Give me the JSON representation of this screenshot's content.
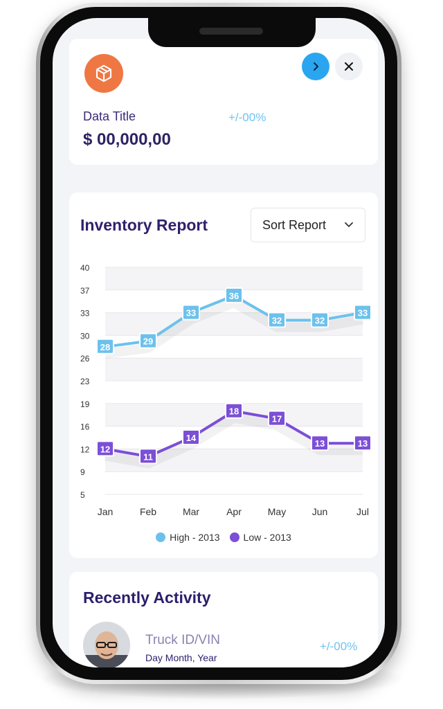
{
  "summary": {
    "title": "Data Title",
    "value": "$ 00,000,00",
    "change": "+/-00%",
    "icon": "package-icon",
    "accent": "#ef7743"
  },
  "report": {
    "title": "Inventory Report",
    "sort_label": "Sort Report"
  },
  "chart_data": {
    "type": "line",
    "categories": [
      "Jan",
      "Feb",
      "Mar",
      "Apr",
      "May",
      "Jun",
      "Jul"
    ],
    "y_ticks": [
      "40",
      "37",
      "33",
      "30",
      "26",
      "23",
      "19",
      "16",
      "12",
      "9",
      "5"
    ],
    "ylim": [
      5,
      40
    ],
    "grid": true,
    "legend_position": "bottom",
    "series": [
      {
        "name": "High - 2013",
        "values": [
          28,
          29,
          33,
          36,
          32,
          32,
          33
        ],
        "color": "#6cc1ec"
      },
      {
        "name": "Low - 2013",
        "values": [
          12,
          11,
          14,
          18,
          17,
          13,
          13
        ],
        "color": "#7b4fd6"
      }
    ]
  },
  "activity": {
    "title": "Recently Activity",
    "items": [
      {
        "name": "Truck ID/VIN",
        "date": "Day Month, Year",
        "change": "+/-00%"
      }
    ]
  }
}
